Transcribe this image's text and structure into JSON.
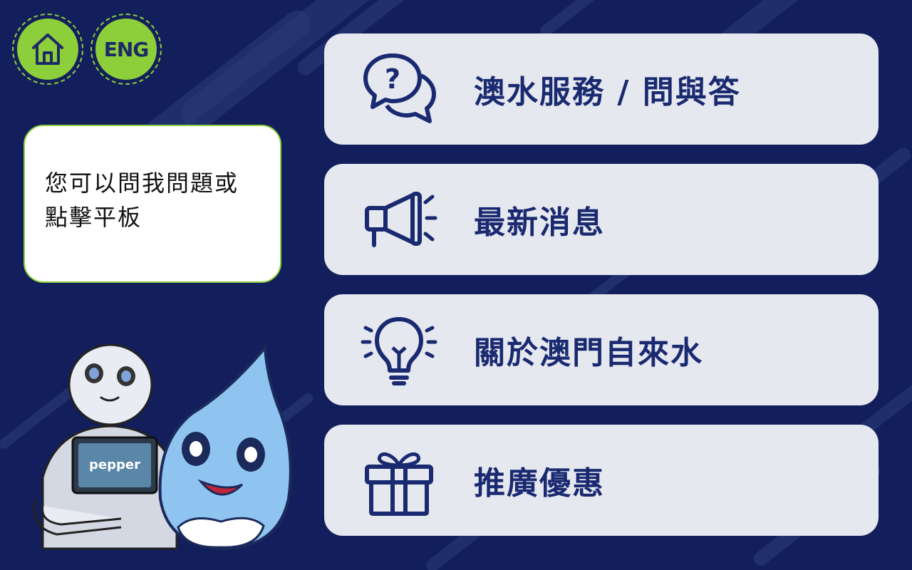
{
  "header": {
    "home_icon": "home-icon",
    "lang_button_label": "ENG"
  },
  "speech_bubble": {
    "text": "您可以問我問題或\n點擊平板"
  },
  "robot": {
    "tablet_label": "pepper"
  },
  "menu": {
    "items": [
      {
        "label": "澳水服務 / 問與答",
        "icon": "question-chat-icon"
      },
      {
        "label": "最新消息",
        "icon": "megaphone-icon"
      },
      {
        "label": "關於澳門自來水",
        "icon": "lightbulb-icon"
      },
      {
        "label": "推廣優惠",
        "icon": "gift-icon"
      }
    ]
  },
  "colors": {
    "background": "#131f5c",
    "accent_green": "#8ccf3a",
    "card": "#e6e8f0",
    "text_navy": "#1a2a70"
  }
}
